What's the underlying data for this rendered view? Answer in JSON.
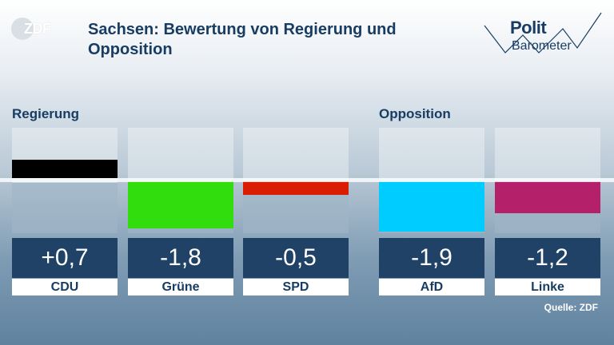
{
  "logo": {
    "text": "ZDF"
  },
  "title": "Sachsen: Bewertung von Regierung und Opposition",
  "brand": {
    "line1": "Polit",
    "line2": "Barometer"
  },
  "sections": {
    "government": "Regierung",
    "opposition": "Opposition"
  },
  "source": "Quelle: ZDF",
  "chart_data": {
    "type": "bar",
    "title": "Sachsen: Bewertung von Regierung und Opposition",
    "categories": [
      "CDU",
      "Grüne",
      "SPD",
      "AfD",
      "Linke"
    ],
    "groups": [
      "Regierung",
      "Regierung",
      "Regierung",
      "Opposition",
      "Opposition"
    ],
    "values": [
      0.7,
      -1.8,
      -0.5,
      -1.9,
      -1.2
    ],
    "value_labels": [
      "+0,7",
      "-1,8",
      "-0,5",
      "-1,9",
      "-1,2"
    ],
    "colors": [
      "#000000",
      "#32dd0e",
      "#d91c02",
      "#00ccff",
      "#b5206a"
    ],
    "ylim": [
      -2,
      2
    ],
    "grid": false,
    "legend": "none"
  }
}
